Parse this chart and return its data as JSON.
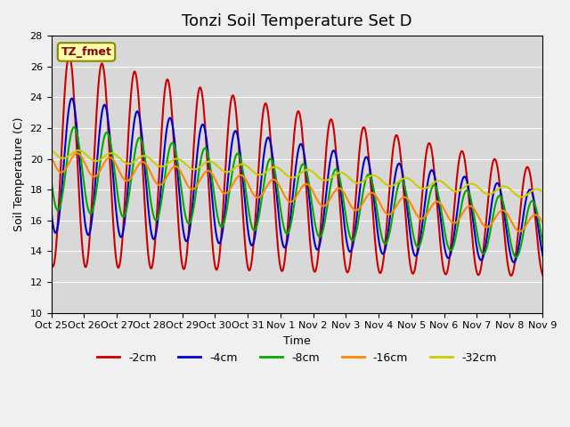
{
  "title": "Tonzi Soil Temperature Set D",
  "xlabel": "Time",
  "ylabel": "Soil Temperature (C)",
  "ylim": [
    10,
    28
  ],
  "yticks": [
    10,
    12,
    14,
    16,
    18,
    20,
    22,
    24,
    26,
    28
  ],
  "bg_color": "#f0f0f0",
  "plot_bg": "#d8d8d8",
  "legend_label": "TZ_fmet",
  "series_keys": [
    "-2cm",
    "-4cm",
    "-8cm",
    "-16cm",
    "-32cm"
  ],
  "series_colors": [
    "#cc0000",
    "#0000cc",
    "#00aa00",
    "#ff8800",
    "#cccc00"
  ],
  "series_lw": [
    1.5,
    1.5,
    1.5,
    1.5,
    1.5
  ],
  "x_labels": [
    "Oct 25",
    "Oct 26",
    "Oct 27",
    "Oct 28",
    "Oct 29",
    "Oct 30",
    "Oct 31",
    "Nov 1",
    "Nov 2",
    "Nov 3",
    "Nov 4",
    "Nov 5",
    "Nov 6",
    "Nov 7",
    "Nov 8",
    "Nov 9"
  ],
  "n_points_per_day": 48,
  "n_days": 16
}
